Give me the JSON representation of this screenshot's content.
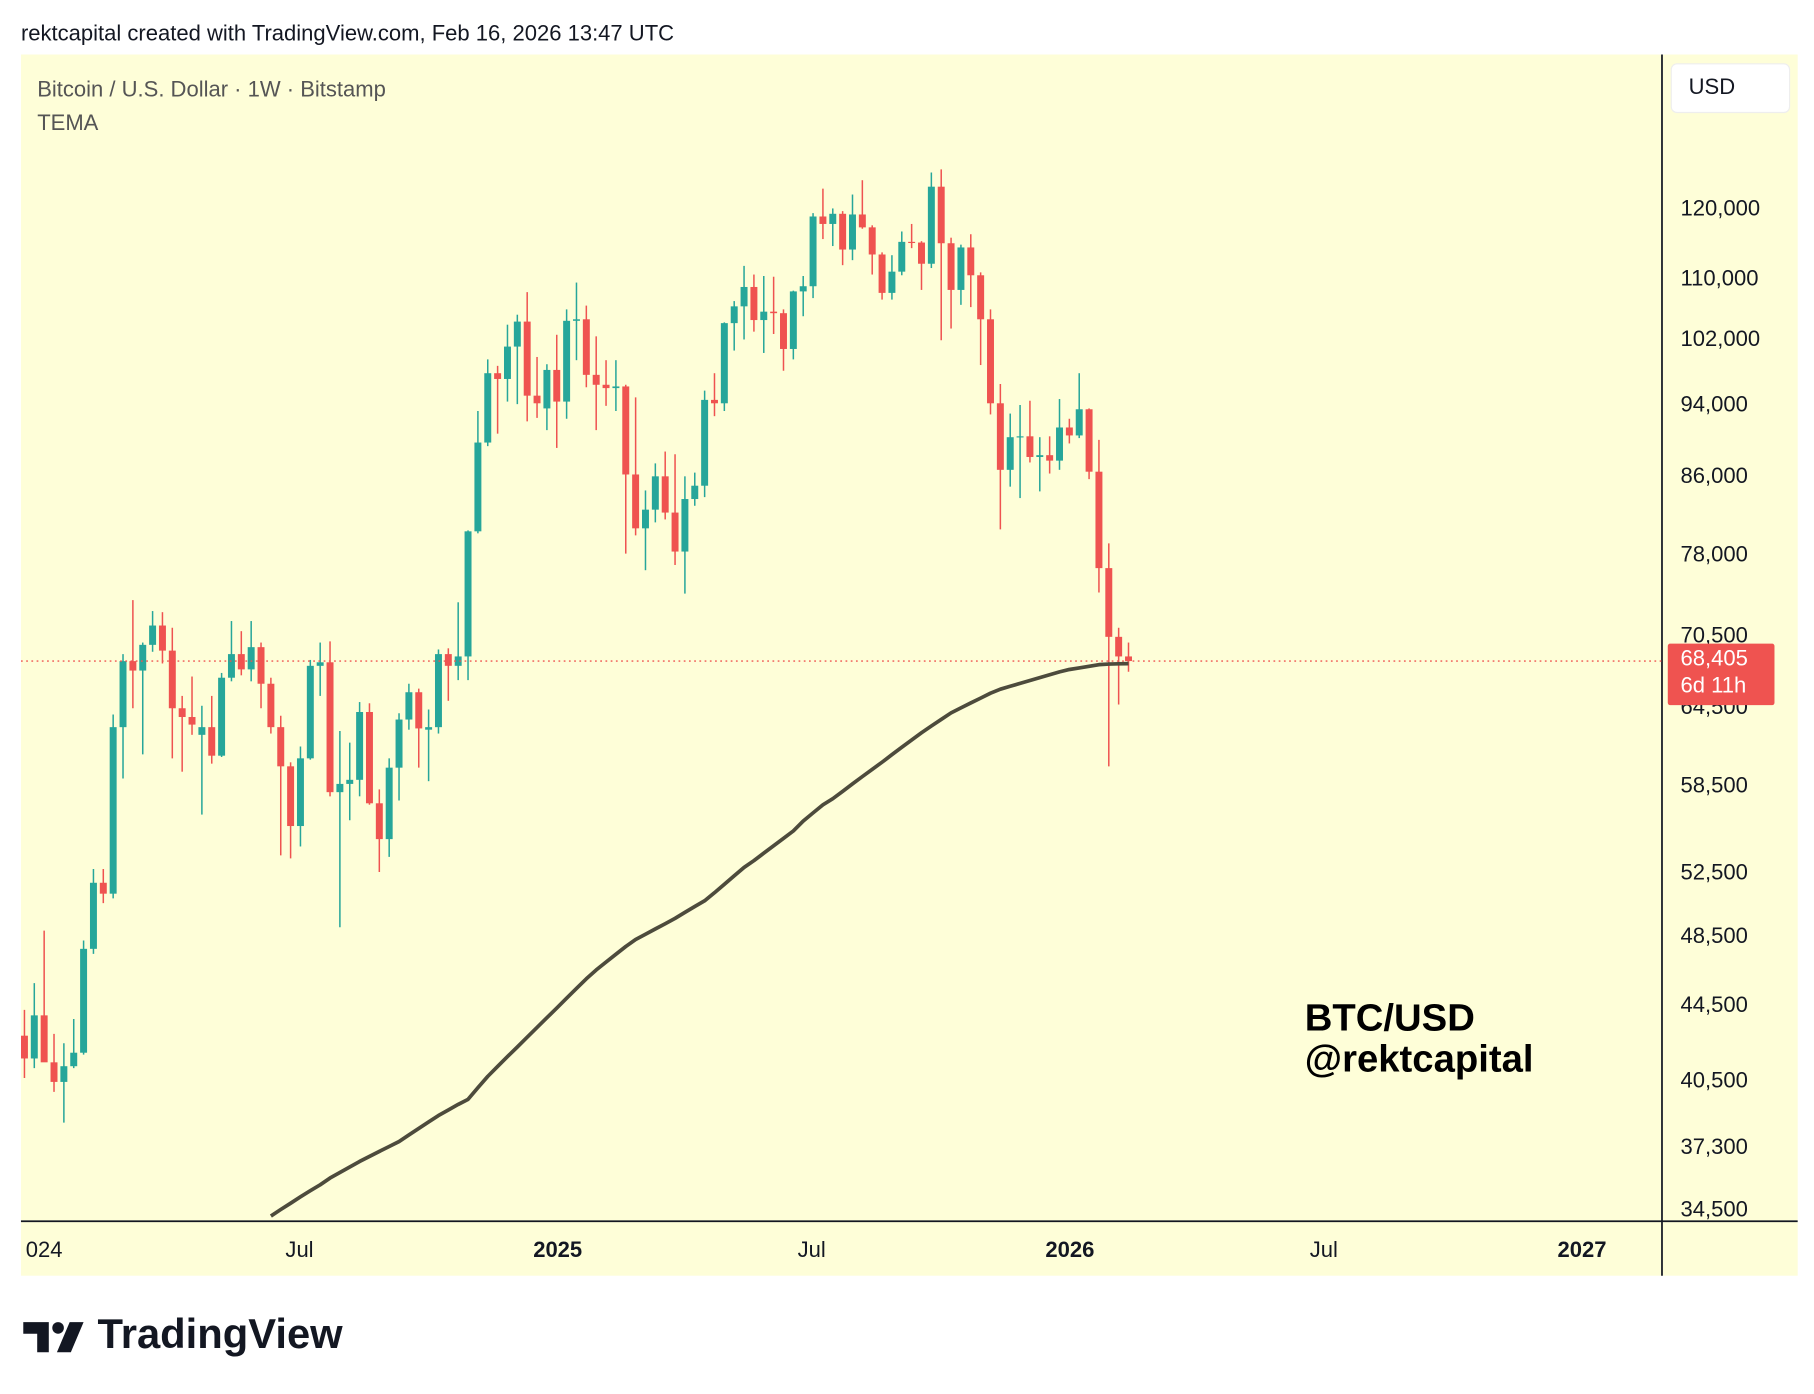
{
  "header": {
    "text": "rektcapital created with TradingView.com, Feb 16, 2026 13:47 UTC"
  },
  "footer": {
    "brand": "TradingView"
  },
  "chart_data": {
    "type": "candlestick",
    "title": "Bitcoin / U.S. Dollar · 1W · Bitstamp",
    "currency": "USD",
    "log_scale": true,
    "grid": false,
    "background": "#fefed8",
    "ylim": [
      34050,
      145600
    ],
    "yticks": [
      {
        "value": 34500,
        "label": "34,500"
      },
      {
        "value": 37300,
        "label": "37,300"
      },
      {
        "value": 40500,
        "label": "40,500"
      },
      {
        "value": 44500,
        "label": "44,500"
      },
      {
        "value": 48500,
        "label": "48,500"
      },
      {
        "value": 52500,
        "label": "52,500"
      },
      {
        "value": 58500,
        "label": "58,500"
      },
      {
        "value": 64500,
        "label": "64,500"
      },
      {
        "value": 70500,
        "label": "70,500"
      },
      {
        "value": 78000,
        "label": "78,000"
      },
      {
        "value": 86000,
        "label": "86,000"
      },
      {
        "value": 94000,
        "label": "94,000"
      },
      {
        "value": 102000,
        "label": "102,000"
      },
      {
        "value": 110000,
        "label": "110,000"
      },
      {
        "value": 120000,
        "label": "120,000"
      }
    ],
    "xticks": [
      {
        "value": "2024-01",
        "label": "024"
      },
      {
        "value": "2024-07",
        "label": "Jul"
      },
      {
        "value": "2025-01",
        "label": "2025"
      },
      {
        "value": "2025-07",
        "label": "Jul"
      },
      {
        "value": "2026-01",
        "label": "2026"
      },
      {
        "value": "2026-07",
        "label": "Jul"
      },
      {
        "value": "2027-01",
        "label": "2027"
      }
    ],
    "series": [
      {
        "type": "candlestick",
        "up_color": "#26a69a",
        "down_color": "#ef5350",
        "open": [
          42900,
          41700,
          44000,
          41500,
          40500,
          41300,
          42000,
          47800,
          51900,
          51200,
          63000,
          68400,
          67600,
          69800,
          71500,
          69300,
          64500,
          63800,
          62400,
          63000,
          60800,
          67000,
          69000,
          67700,
          69600,
          66500,
          63000,
          60000,
          55700,
          60600,
          68000,
          68300,
          58100,
          58700,
          59000,
          64200,
          57300,
          54800,
          59900,
          63600,
          65800,
          62800,
          63000,
          69000,
          68000,
          68800,
          80400,
          89800,
          97900,
          97200,
          101200,
          104400,
          95200,
          93700,
          98300,
          94500,
          104500,
          104700,
          97700,
          96500,
          96100,
          96300,
          86300,
          80700,
          82600,
          86100,
          82300,
          78400,
          83700,
          85100,
          94700,
          94300,
          104200,
          106400,
          109000,
          104600,
          105700,
          105500,
          100900,
          108400,
          109100,
          119000,
          117900,
          119400,
          114200,
          119300,
          117400,
          113500,
          108200,
          111100,
          115300,
          115200,
          112200,
          123500,
          115100,
          108600,
          114500,
          110600,
          104700,
          94300,
          86800,
          90400,
          90500,
          88200,
          88400,
          87800,
          91500,
          90600,
          93600,
          86600,
          76800,
          70500,
          68800
        ],
        "high": [
          44300,
          45800,
          48900,
          43000,
          42500,
          43800,
          48300,
          52800,
          52800,
          64000,
          69000,
          73800,
          70000,
          72800,
          72700,
          71300,
          65500,
          67100,
          64700,
          65500,
          67400,
          71900,
          71000,
          71900,
          70000,
          67000,
          63900,
          60300,
          61500,
          68500,
          70000,
          70100,
          62700,
          61800,
          65000,
          64900,
          58300,
          60600,
          64100,
          66500,
          66100,
          64400,
          69400,
          69500,
          73600,
          80500,
          93400,
          99600,
          98800,
          104000,
          105300,
          108300,
          99900,
          99000,
          102700,
          106000,
          109600,
          106500,
          102500,
          99500,
          99500,
          96500,
          95000,
          84600,
          87500,
          88800,
          88500,
          86100,
          86500,
          95800,
          97900,
          104300,
          107100,
          111900,
          110700,
          110500,
          110400,
          106000,
          108500,
          110500,
          119500,
          123200,
          120200,
          119800,
          122300,
          124500,
          117700,
          113800,
          113400,
          116800,
          117900,
          115400,
          125700,
          126200,
          115900,
          114900,
          116400,
          111000,
          106000,
          96600,
          93100,
          94100,
          94600,
          90400,
          90500,
          94800,
          92500,
          97900,
          93700,
          90100,
          79200,
          71300,
          70000
        ],
        "low": [
          40700,
          41200,
          41600,
          40000,
          38500,
          41200,
          41900,
          47500,
          50600,
          50900,
          59100,
          64500,
          60900,
          69200,
          68200,
          60600,
          59600,
          62400,
          56500,
          60200,
          60700,
          66700,
          67200,
          66700,
          64500,
          62500,
          53700,
          53500,
          54300,
          60500,
          65500,
          57800,
          49100,
          56100,
          57800,
          57200,
          52600,
          53600,
          57500,
          62800,
          59900,
          58900,
          62500,
          65100,
          66800,
          66800,
          80200,
          89400,
          90800,
          94500,
          94200,
          92200,
          92600,
          91200,
          89200,
          92500,
          99500,
          96200,
          91200,
          94000,
          93400,
          78200,
          80000,
          76600,
          81300,
          81600,
          77100,
          74400,
          83000,
          83900,
          92800,
          93400,
          100700,
          102100,
          103100,
          100400,
          102800,
          98200,
          99600,
          105100,
          107500,
          115700,
          114700,
          112000,
          112700,
          117200,
          110700,
          107300,
          107300,
          110600,
          114400,
          108600,
          111600,
          102000,
          103500,
          106600,
          106300,
          98900,
          93000,
          80600,
          85000,
          83800,
          87600,
          84500,
          86400,
          86800,
          89700,
          90300,
          85800,
          74500,
          60000,
          64800,
          67500
        ],
        "close": [
          41700,
          44000,
          41500,
          40500,
          41300,
          42000,
          47800,
          51900,
          51200,
          63000,
          68400,
          67600,
          69800,
          71500,
          69300,
          64500,
          63800,
          63200,
          63000,
          60800,
          67000,
          69000,
          67700,
          69600,
          66500,
          63000,
          60000,
          55700,
          60600,
          68000,
          68300,
          58100,
          58700,
          59000,
          64200,
          57300,
          54800,
          59900,
          63600,
          65800,
          62900,
          63000,
          69000,
          68000,
          68800,
          80400,
          89800,
          97900,
          97200,
          101200,
          104400,
          95200,
          94300,
          98300,
          94500,
          104500,
          104700,
          97700,
          96500,
          96100,
          96300,
          86300,
          80700,
          82600,
          86100,
          82300,
          78400,
          83700,
          85100,
          94700,
          94300,
          104200,
          106400,
          109000,
          104600,
          105700,
          105500,
          100900,
          108400,
          109100,
          119000,
          117900,
          119400,
          114200,
          119300,
          117400,
          113500,
          108200,
          111100,
          115300,
          115200,
          112200,
          123500,
          115100,
          108600,
          114500,
          110600,
          104700,
          94300,
          86800,
          90400,
          90500,
          88200,
          88400,
          87800,
          91500,
          90600,
          93600,
          86600,
          76800,
          70500,
          68800,
          68405
        ]
      },
      {
        "type": "line",
        "name": "TEMA",
        "color": "#4d4b3c",
        "values": [
          null,
          null,
          null,
          null,
          null,
          null,
          null,
          null,
          null,
          null,
          null,
          null,
          null,
          null,
          null,
          null,
          null,
          null,
          null,
          null,
          null,
          null,
          null,
          null,
          null,
          34270,
          34550,
          34820,
          35100,
          35370,
          35630,
          35930,
          36180,
          36430,
          36680,
          36910,
          37140,
          37370,
          37600,
          37910,
          38220,
          38530,
          38840,
          39110,
          39380,
          39630,
          40210,
          40780,
          41290,
          41800,
          42300,
          42820,
          43340,
          43870,
          44400,
          44950,
          45500,
          46050,
          46560,
          47020,
          47480,
          47940,
          48360,
          48680,
          49000,
          49320,
          49650,
          50020,
          50390,
          50750,
          51260,
          51800,
          52350,
          52900,
          53350,
          53850,
          54350,
          54850,
          55360,
          56050,
          56620,
          57190,
          57630,
          58160,
          58700,
          59240,
          59770,
          60310,
          60880,
          61440,
          62000,
          62560,
          63090,
          63610,
          64130,
          64530,
          64930,
          65320,
          65720,
          66050,
          66290,
          66530,
          66770,
          67010,
          67250,
          67490,
          67690,
          67820,
          67960,
          68100,
          68150,
          68170,
          68190
        ]
      }
    ],
    "last_price": {
      "value": 68405,
      "label": "68,405",
      "countdown": "6d 11h",
      "color": "#ef5350"
    },
    "watermark": [
      "BTC/USD",
      "@rektcapital"
    ]
  }
}
